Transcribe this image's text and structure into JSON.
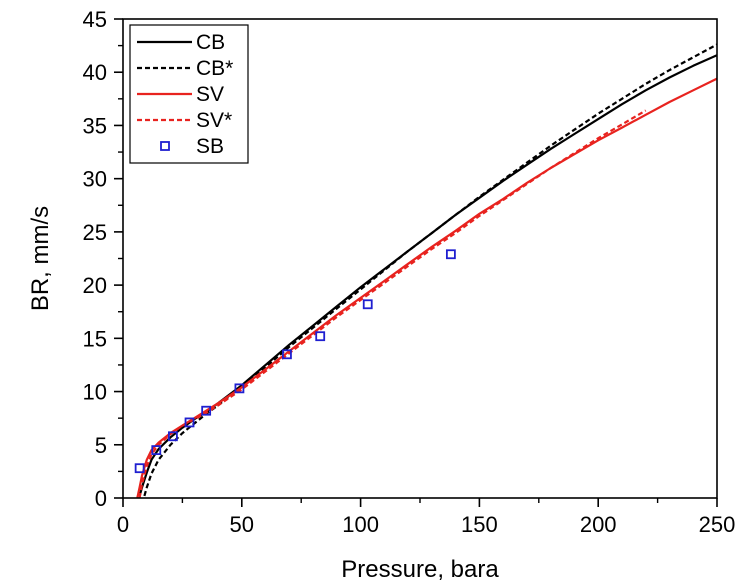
{
  "chart_data": {
    "type": "line",
    "xlabel": "Pressure, bara",
    "ylabel": "BR, mm/s",
    "xlim": [
      0,
      250
    ],
    "ylim": [
      0,
      45
    ],
    "x_ticks": [
      0,
      50,
      100,
      150,
      200,
      250
    ],
    "y_ticks": [
      0,
      5,
      10,
      15,
      20,
      25,
      30,
      35,
      40,
      45
    ],
    "grid": false,
    "legend_position": "top-left",
    "series": [
      {
        "name": "CB",
        "color": "#000000",
        "dash": "solid",
        "marker": "none",
        "x": [
          7,
          8,
          10,
          12,
          15,
          20,
          25,
          30,
          35,
          40,
          50,
          60,
          70,
          80,
          90,
          100,
          110,
          120,
          130,
          140,
          150,
          160,
          170,
          180,
          190,
          200,
          210,
          220,
          230,
          240,
          250
        ],
        "y": [
          0.2,
          1.0,
          2.4,
          3.6,
          4.6,
          5.7,
          6.6,
          7.4,
          8.1,
          8.9,
          10.6,
          12.5,
          14.4,
          16.2,
          18.0,
          19.8,
          21.5,
          23.2,
          24.9,
          26.6,
          28.2,
          29.8,
          31.3,
          32.8,
          34.2,
          35.6,
          37.0,
          38.3,
          39.5,
          40.6,
          41.6
        ]
      },
      {
        "name": "CB*",
        "color": "#000000",
        "dash": "dashed",
        "marker": "none",
        "x": [
          9,
          10,
          12,
          15,
          20,
          25,
          30,
          35,
          40,
          50,
          60,
          70,
          80,
          90,
          100,
          110,
          120,
          130,
          140,
          150,
          160,
          170,
          180,
          190,
          200,
          210,
          220,
          230,
          240,
          250
        ],
        "y": [
          0.2,
          1.0,
          2.3,
          3.6,
          5.0,
          6.1,
          7.0,
          7.9,
          8.7,
          10.5,
          12.3,
          14.2,
          16.0,
          17.8,
          19.6,
          21.4,
          23.2,
          24.9,
          26.6,
          28.3,
          29.9,
          31.5,
          33.1,
          34.6,
          36.1,
          37.5,
          38.9,
          40.2,
          41.4,
          42.6
        ]
      },
      {
        "name": "SV",
        "color": "#e8231f",
        "dash": "solid",
        "marker": "none",
        "x": [
          6,
          7,
          8,
          10,
          12,
          15,
          20,
          25,
          30,
          35,
          40,
          50,
          60,
          70,
          80,
          90,
          100,
          110,
          120,
          130,
          140,
          150,
          160,
          170,
          180,
          190,
          200,
          210,
          220,
          230,
          240,
          250
        ],
        "y": [
          0.0,
          1.0,
          2.1,
          3.6,
          4.5,
          5.2,
          6.1,
          6.8,
          7.5,
          8.2,
          8.9,
          10.4,
          12.1,
          13.8,
          15.5,
          17.2,
          18.8,
          20.4,
          22.0,
          23.6,
          25.1,
          26.7,
          28.1,
          29.6,
          31.0,
          32.3,
          33.6,
          34.8,
          36.0,
          37.2,
          38.3,
          39.4
        ]
      },
      {
        "name": "SV*",
        "color": "#e8231f",
        "dash": "dashed",
        "marker": "none",
        "x": [
          7,
          8,
          10,
          12,
          15,
          20,
          25,
          30,
          35,
          40,
          50,
          60,
          70,
          80,
          90,
          100,
          110,
          120,
          130,
          140,
          150,
          160,
          170,
          180,
          190,
          200,
          210,
          220
        ],
        "y": [
          0.0,
          1.3,
          3.0,
          4.1,
          5.0,
          6.0,
          6.8,
          7.4,
          8.0,
          8.7,
          10.2,
          11.9,
          13.6,
          15.3,
          17.0,
          18.6,
          20.2,
          21.8,
          23.4,
          24.9,
          26.5,
          28.0,
          29.5,
          31.0,
          32.4,
          33.8,
          35.1,
          36.4
        ]
      },
      {
        "name": "SB",
        "color": "#1f1fd0",
        "dash": "none",
        "marker": "square",
        "x": [
          7,
          14,
          21,
          28,
          35,
          49,
          69,
          83,
          103,
          138
        ],
        "y": [
          2.8,
          4.5,
          5.8,
          7.1,
          8.2,
          10.3,
          13.5,
          15.2,
          18.2,
          22.9
        ]
      }
    ]
  }
}
